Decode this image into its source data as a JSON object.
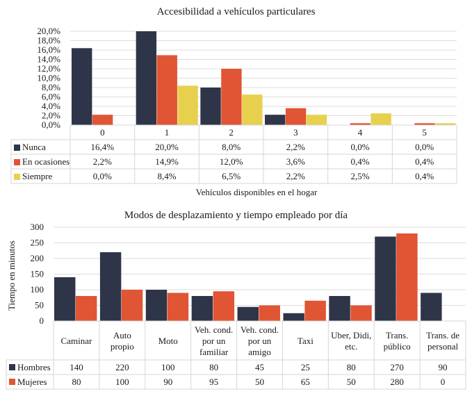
{
  "colors": {
    "series1": "#2f3549",
    "series2": "#e05534",
    "series3": "#e8d04f",
    "grid": "#dcdcdc",
    "table_border": "#d6d6d6"
  },
  "chart_data": [
    {
      "type": "bar",
      "title": "Accesibilidad a vehículos particulares",
      "xlabel": "Vehículos disponibles en el hogar",
      "ylabel": "",
      "ylim": [
        0,
        20
      ],
      "yticks": [
        "0,0%",
        "2,0%",
        "4,0%",
        "6,0%",
        "8,0%",
        "10,0%",
        "12,0%",
        "14,0%",
        "16,0%",
        "18,0%",
        "20,0%"
      ],
      "ytick_values": [
        0,
        2,
        4,
        6,
        8,
        10,
        12,
        14,
        16,
        18,
        20
      ],
      "grid": true,
      "legend_placement": "data-table",
      "categories": [
        "0",
        "1",
        "2",
        "3",
        "4",
        "5"
      ],
      "series": [
        {
          "name": "Nunca",
          "values": [
            16.4,
            20.0,
            8.0,
            2.2,
            0.0,
            0.0
          ],
          "labels": [
            "16,4%",
            "20,0%",
            "8,0%",
            "2,2%",
            "0,0%",
            "0,0%"
          ]
        },
        {
          "name": "En ocasiones",
          "values": [
            2.2,
            14.9,
            12.0,
            3.6,
            0.4,
            0.4
          ],
          "labels": [
            "2,2%",
            "14,9%",
            "12,0%",
            "3,6%",
            "0,4%",
            "0,4%"
          ]
        },
        {
          "name": "Siempre",
          "values": [
            0.0,
            8.4,
            6.5,
            2.2,
            2.5,
            0.4
          ],
          "labels": [
            "0,0%",
            "8,4%",
            "6,5%",
            "2,2%",
            "2,5%",
            "0,4%"
          ]
        }
      ]
    },
    {
      "type": "bar",
      "title": "Modos de desplazamiento y tiempo empleado por día",
      "xlabel": "",
      "ylabel": "Tiempo en minutos",
      "ylim": [
        0,
        300
      ],
      "yticks": [
        "0",
        "50",
        "100",
        "150",
        "200",
        "250",
        "300"
      ],
      "ytick_values": [
        0,
        50,
        100,
        150,
        200,
        250,
        300
      ],
      "grid": true,
      "legend_placement": "data-table",
      "categories": [
        [
          "Caminar"
        ],
        [
          "Auto",
          "propio"
        ],
        [
          "Moto"
        ],
        [
          "Veh. cond.",
          "por un",
          "familiar"
        ],
        [
          "Veh. cond.",
          "por un",
          "amigo"
        ],
        [
          "Taxi"
        ],
        [
          "Uber, Didi,",
          "etc."
        ],
        [
          "Trans.",
          "público"
        ],
        [
          "Trans. de",
          "personal"
        ]
      ],
      "series": [
        {
          "name": "Hombres",
          "values": [
            140,
            220,
            100,
            80,
            45,
            25,
            80,
            270,
            90
          ],
          "labels": [
            "140",
            "220",
            "100",
            "80",
            "45",
            "25",
            "80",
            "270",
            "90"
          ]
        },
        {
          "name": "Mujeres",
          "values": [
            80,
            100,
            90,
            95,
            50,
            65,
            50,
            280,
            0
          ],
          "labels": [
            "80",
            "100",
            "90",
            "95",
            "50",
            "65",
            "50",
            "280",
            "0"
          ]
        }
      ]
    }
  ]
}
